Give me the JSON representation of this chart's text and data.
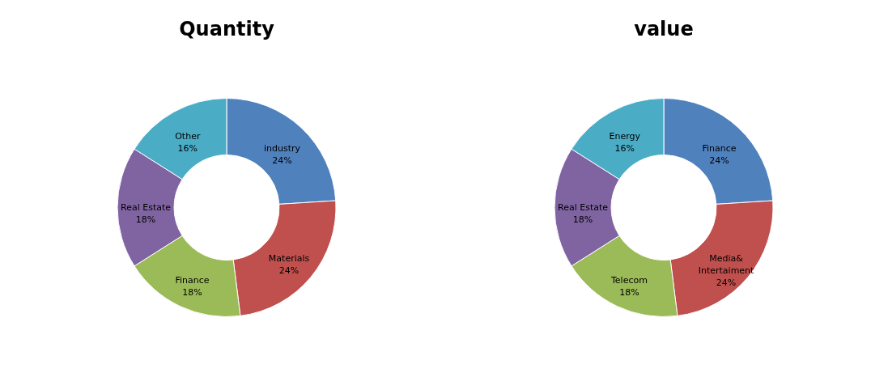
{
  "chart_data": [
    {
      "type": "donut",
      "title": "Quantity",
      "categories": [
        "industry",
        "Materials",
        "Finance",
        "Real Estate",
        "Other"
      ],
      "values": [
        24,
        24,
        18,
        18,
        16
      ],
      "colors": [
        "#4f81bd",
        "#c0504d",
        "#9bbb59",
        "#8064a2",
        "#4bacc6"
      ],
      "value_labels": [
        "24%",
        "24%",
        "18%",
        "18%",
        "16%"
      ]
    },
    {
      "type": "donut",
      "title": "value",
      "categories": [
        "Finance",
        "Media& Intertaiment",
        "Telecom",
        "Real Estate",
        "Energy"
      ],
      "values": [
        24,
        24,
        18,
        18,
        16
      ],
      "colors": [
        "#4f81bd",
        "#c0504d",
        "#9bbb59",
        "#8064a2",
        "#4bacc6"
      ],
      "value_labels": [
        "24%",
        "24%",
        "18%",
        "18%",
        "16%"
      ]
    }
  ]
}
